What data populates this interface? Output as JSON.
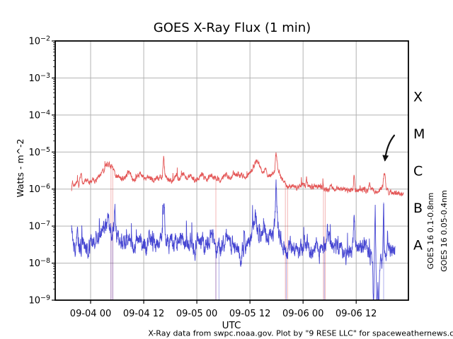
{
  "caption": "X-Ray data from swpc.noaa.gov. Plot by \"9 RESE LLC\" for spaceweathernews.com",
  "chart_data": {
    "type": "line",
    "title": "GOES X-Ray Flux (1 min)",
    "xlabel": "UTC",
    "ylabel": "Watts - m^-2",
    "y_scale": "log",
    "ylim": [
      1e-09,
      0.01
    ],
    "ylim_log10": [
      -9,
      -2
    ],
    "xlim_hours_from_09_04_00": [
      -8,
      71.8
    ],
    "grid": true,
    "grid_color": "#b3b3b3",
    "x_ticks": [
      {
        "hour": 0,
        "label": "09-04 00"
      },
      {
        "hour": 12,
        "label": "09-04 12"
      },
      {
        "hour": 24,
        "label": "09-05 00"
      },
      {
        "hour": 36,
        "label": "09-05 12"
      },
      {
        "hour": 48,
        "label": "09-06 00"
      },
      {
        "hour": 60,
        "label": "09-06 12"
      }
    ],
    "y_tick_exponents": [
      -2,
      -3,
      -4,
      -5,
      -6,
      -7,
      -8,
      -9
    ],
    "flare_class_labels": [
      {
        "label": "X",
        "log10_center": -3.5
      },
      {
        "label": "M",
        "log10_center": -4.5
      },
      {
        "label": "C",
        "log10_center": -5.5
      },
      {
        "label": "B",
        "log10_center": -6.5
      },
      {
        "label": "A",
        "log10_center": -7.5
      }
    ],
    "annotation_arrow": {
      "color": "#111111",
      "tail_hour_log10": [
        68.6,
        -4.55
      ],
      "ctrl_hour_log10": [
        66.9,
        -4.8
      ],
      "tip_hour_log10": [
        66.5,
        -5.22
      ]
    },
    "series": [
      {
        "name": "GOES 16 0.1-0.8nm",
        "color": "#e04040",
        "legend_color": "#d40000",
        "seed": 7,
        "noise": {
          "persist": 0.6,
          "amp": 0.055,
          "spike_p": 0.006,
          "spike_min": 0.08,
          "spike_max": 0.22
        },
        "dropouts_hours": [
          4.6,
          5.0,
          28.3,
          44.0,
          44.5,
          52.6,
          53.0
        ],
        "anchors_hour_log10flux": [
          [
            -4.3,
            -6.0
          ],
          [
            -4.1,
            -5.78
          ],
          [
            -3.7,
            -5.9
          ],
          [
            -3.2,
            -5.8
          ],
          [
            -2.7,
            -5.92
          ],
          [
            -2.1,
            -5.62
          ],
          [
            -1.7,
            -5.86
          ],
          [
            -1.0,
            -5.78
          ],
          [
            -0.3,
            -5.85
          ],
          [
            0.5,
            -5.72
          ],
          [
            1.2,
            -5.78
          ],
          [
            2.2,
            -5.6
          ],
          [
            3.0,
            -5.5
          ],
          [
            3.7,
            -5.3
          ],
          [
            4.2,
            -5.34
          ],
          [
            4.9,
            -5.42
          ],
          [
            5.6,
            -5.6
          ],
          [
            6.6,
            -5.7
          ],
          [
            7.6,
            -5.73
          ],
          [
            8.7,
            -5.5
          ],
          [
            9.4,
            -5.72
          ],
          [
            10.4,
            -5.73
          ],
          [
            11.3,
            -5.56
          ],
          [
            12.1,
            -5.72
          ],
          [
            13.1,
            -5.68
          ],
          [
            14.1,
            -5.76
          ],
          [
            15.2,
            -5.7
          ],
          [
            16.2,
            -5.65
          ],
          [
            16.5,
            -5.08
          ],
          [
            16.8,
            -5.6
          ],
          [
            17.6,
            -5.76
          ],
          [
            18.6,
            -5.8
          ],
          [
            19.4,
            -5.6
          ],
          [
            20.1,
            -5.76
          ],
          [
            20.9,
            -5.56
          ],
          [
            21.6,
            -5.72
          ],
          [
            22.6,
            -5.65
          ],
          [
            23.5,
            -5.76
          ],
          [
            24.3,
            -5.7
          ],
          [
            25.2,
            -5.6
          ],
          [
            26.1,
            -5.76
          ],
          [
            27.0,
            -5.62
          ],
          [
            28.1,
            -5.67
          ],
          [
            29.4,
            -5.76
          ],
          [
            30.4,
            -5.6
          ],
          [
            31.4,
            -5.72
          ],
          [
            32.3,
            -5.56
          ],
          [
            33.1,
            -5.66
          ],
          [
            34.1,
            -5.6
          ],
          [
            35.1,
            -5.68
          ],
          [
            36.1,
            -5.54
          ],
          [
            36.9,
            -5.36
          ],
          [
            37.5,
            -5.22
          ],
          [
            38.1,
            -5.32
          ],
          [
            38.8,
            -5.56
          ],
          [
            39.5,
            -5.45
          ],
          [
            40.2,
            -5.66
          ],
          [
            41.0,
            -5.6
          ],
          [
            41.6,
            -5.5
          ],
          [
            41.9,
            -4.96
          ],
          [
            42.3,
            -5.5
          ],
          [
            43.1,
            -5.7
          ],
          [
            43.9,
            -5.84
          ],
          [
            44.7,
            -5.96
          ],
          [
            45.6,
            -5.9
          ],
          [
            46.6,
            -5.96
          ],
          [
            47.6,
            -5.88
          ],
          [
            48.6,
            -5.92
          ],
          [
            48.8,
            -5.68
          ],
          [
            49.1,
            -5.92
          ],
          [
            50.1,
            -5.96
          ],
          [
            51.1,
            -5.92
          ],
          [
            52.1,
            -5.96
          ],
          [
            53.4,
            -6.0
          ],
          [
            54.4,
            -5.96
          ],
          [
            55.4,
            -6.0
          ],
          [
            56.4,
            -5.98
          ],
          [
            57.4,
            -6.02
          ],
          [
            58.4,
            -6.0
          ],
          [
            59.3,
            -6.02
          ],
          [
            59.5,
            -5.58
          ],
          [
            59.8,
            -6.02
          ],
          [
            60.7,
            -6.03
          ],
          [
            61.7,
            -6.0
          ],
          [
            62.6,
            -6.05
          ],
          [
            63.0,
            -5.88
          ],
          [
            63.5,
            -6.05
          ],
          [
            64.5,
            -6.06
          ],
          [
            65.5,
            -6.0
          ],
          [
            66.0,
            -5.95
          ],
          [
            66.4,
            -5.5
          ],
          [
            66.8,
            -6.0
          ],
          [
            67.5,
            -6.08
          ],
          [
            68.5,
            -6.1
          ],
          [
            69.5,
            -6.1
          ],
          [
            70.7,
            -6.13
          ]
        ]
      },
      {
        "name": "GOES 16 0.05-0.4nm",
        "color": "#2c2ccc",
        "legend_color": "#0000d4",
        "seed": 13,
        "noise": {
          "persist": 0.72,
          "amp": 0.16,
          "spike_p": 0.012,
          "spike_min": 0.25,
          "spike_max": 0.6
        },
        "dropouts_hours": [
          4.6,
          5.0,
          28.3,
          29.0,
          44.2,
          52.8,
          66.2
        ],
        "anchors_hour_log10flux": [
          [
            -4.3,
            -7.0
          ],
          [
            -4.0,
            -7.4
          ],
          [
            -3.4,
            -7.6
          ],
          [
            -2.9,
            -7.3
          ],
          [
            -2.4,
            -7.6
          ],
          [
            -1.9,
            -7.45
          ],
          [
            -1.0,
            -7.7
          ],
          [
            -0.1,
            -7.5
          ],
          [
            0.9,
            -7.4
          ],
          [
            1.9,
            -7.35
          ],
          [
            2.9,
            -7.15
          ],
          [
            3.6,
            -7.0
          ],
          [
            3.9,
            -6.35
          ],
          [
            4.3,
            -7.0
          ],
          [
            4.9,
            -7.2
          ],
          [
            5.3,
            -6.9
          ],
          [
            5.5,
            -6.55
          ],
          [
            5.9,
            -7.25
          ],
          [
            6.7,
            -7.45
          ],
          [
            7.7,
            -7.5
          ],
          [
            8.6,
            -7.3
          ],
          [
            9.2,
            -7.55
          ],
          [
            10.2,
            -7.4
          ],
          [
            11.0,
            -7.3
          ],
          [
            11.6,
            -7.6
          ],
          [
            12.6,
            -7.5
          ],
          [
            13.6,
            -7.35
          ],
          [
            14.6,
            -7.55
          ],
          [
            15.6,
            -7.4
          ],
          [
            16.2,
            -7.15
          ],
          [
            16.5,
            -6.38
          ],
          [
            16.9,
            -7.2
          ],
          [
            17.7,
            -7.5
          ],
          [
            18.2,
            -7.3
          ],
          [
            18.8,
            -7.6
          ],
          [
            19.7,
            -7.4
          ],
          [
            20.6,
            -7.3
          ],
          [
            21.2,
            -7.5
          ],
          [
            22.2,
            -7.4
          ],
          [
            23.2,
            -7.6
          ],
          [
            24.1,
            -7.5
          ],
          [
            24.6,
            -7.3
          ],
          [
            25.6,
            -7.55
          ],
          [
            26.6,
            -7.4
          ],
          [
            27.6,
            -7.3
          ],
          [
            28.6,
            -7.5
          ],
          [
            29.6,
            -7.6
          ],
          [
            30.6,
            -7.4
          ],
          [
            31.1,
            -7.2
          ],
          [
            31.7,
            -7.5
          ],
          [
            32.7,
            -7.6
          ],
          [
            33.7,
            -7.8
          ],
          [
            34.7,
            -7.5
          ],
          [
            35.7,
            -7.4
          ],
          [
            36.6,
            -7.1
          ],
          [
            37.2,
            -6.7
          ],
          [
            37.9,
            -7.1
          ],
          [
            38.6,
            -7.3
          ],
          [
            39.3,
            -7.0
          ],
          [
            40.1,
            -7.4
          ],
          [
            41.1,
            -7.2
          ],
          [
            41.6,
            -7.0
          ],
          [
            41.9,
            -5.82
          ],
          [
            42.3,
            -7.0
          ],
          [
            43.1,
            -7.4
          ],
          [
            43.9,
            -7.5
          ],
          [
            44.6,
            -7.6
          ],
          [
            45.6,
            -7.5
          ],
          [
            46.6,
            -7.7
          ],
          [
            47.6,
            -7.6
          ],
          [
            48.6,
            -7.5
          ],
          [
            49.6,
            -7.65
          ],
          [
            50.6,
            -7.55
          ],
          [
            51.6,
            -7.7
          ],
          [
            52.6,
            -7.6
          ],
          [
            53.1,
            -7.3
          ],
          [
            53.5,
            -7.1
          ],
          [
            54.1,
            -7.5
          ],
          [
            54.6,
            -7.6
          ],
          [
            55.6,
            -7.7
          ],
          [
            56.6,
            -7.6
          ],
          [
            57.6,
            -7.75
          ],
          [
            58.6,
            -7.65
          ],
          [
            59.3,
            -7.5
          ],
          [
            59.5,
            -6.6
          ],
          [
            59.8,
            -7.5
          ],
          [
            60.7,
            -7.6
          ],
          [
            61.7,
            -7.55
          ],
          [
            62.7,
            -7.65
          ],
          [
            63.4,
            -7.85
          ],
          [
            63.7,
            -7.9
          ],
          [
            63.9,
            -9.3
          ],
          [
            64.1,
            -8.0
          ],
          [
            64.3,
            -6.4
          ],
          [
            64.5,
            -8.3
          ],
          [
            64.7,
            -9.3
          ],
          [
            64.9,
            -8.4
          ],
          [
            65.1,
            -9.3
          ],
          [
            65.3,
            -8.0
          ],
          [
            65.7,
            -7.9
          ],
          [
            66.0,
            -7.85
          ],
          [
            66.2,
            -6.35
          ],
          [
            66.4,
            -8.0
          ],
          [
            66.7,
            -7.8
          ],
          [
            67.1,
            -7.6
          ],
          [
            67.6,
            -7.55
          ],
          [
            68.1,
            -7.6
          ],
          [
            68.5,
            -7.55
          ],
          [
            68.8,
            -7.6
          ]
        ]
      }
    ]
  }
}
